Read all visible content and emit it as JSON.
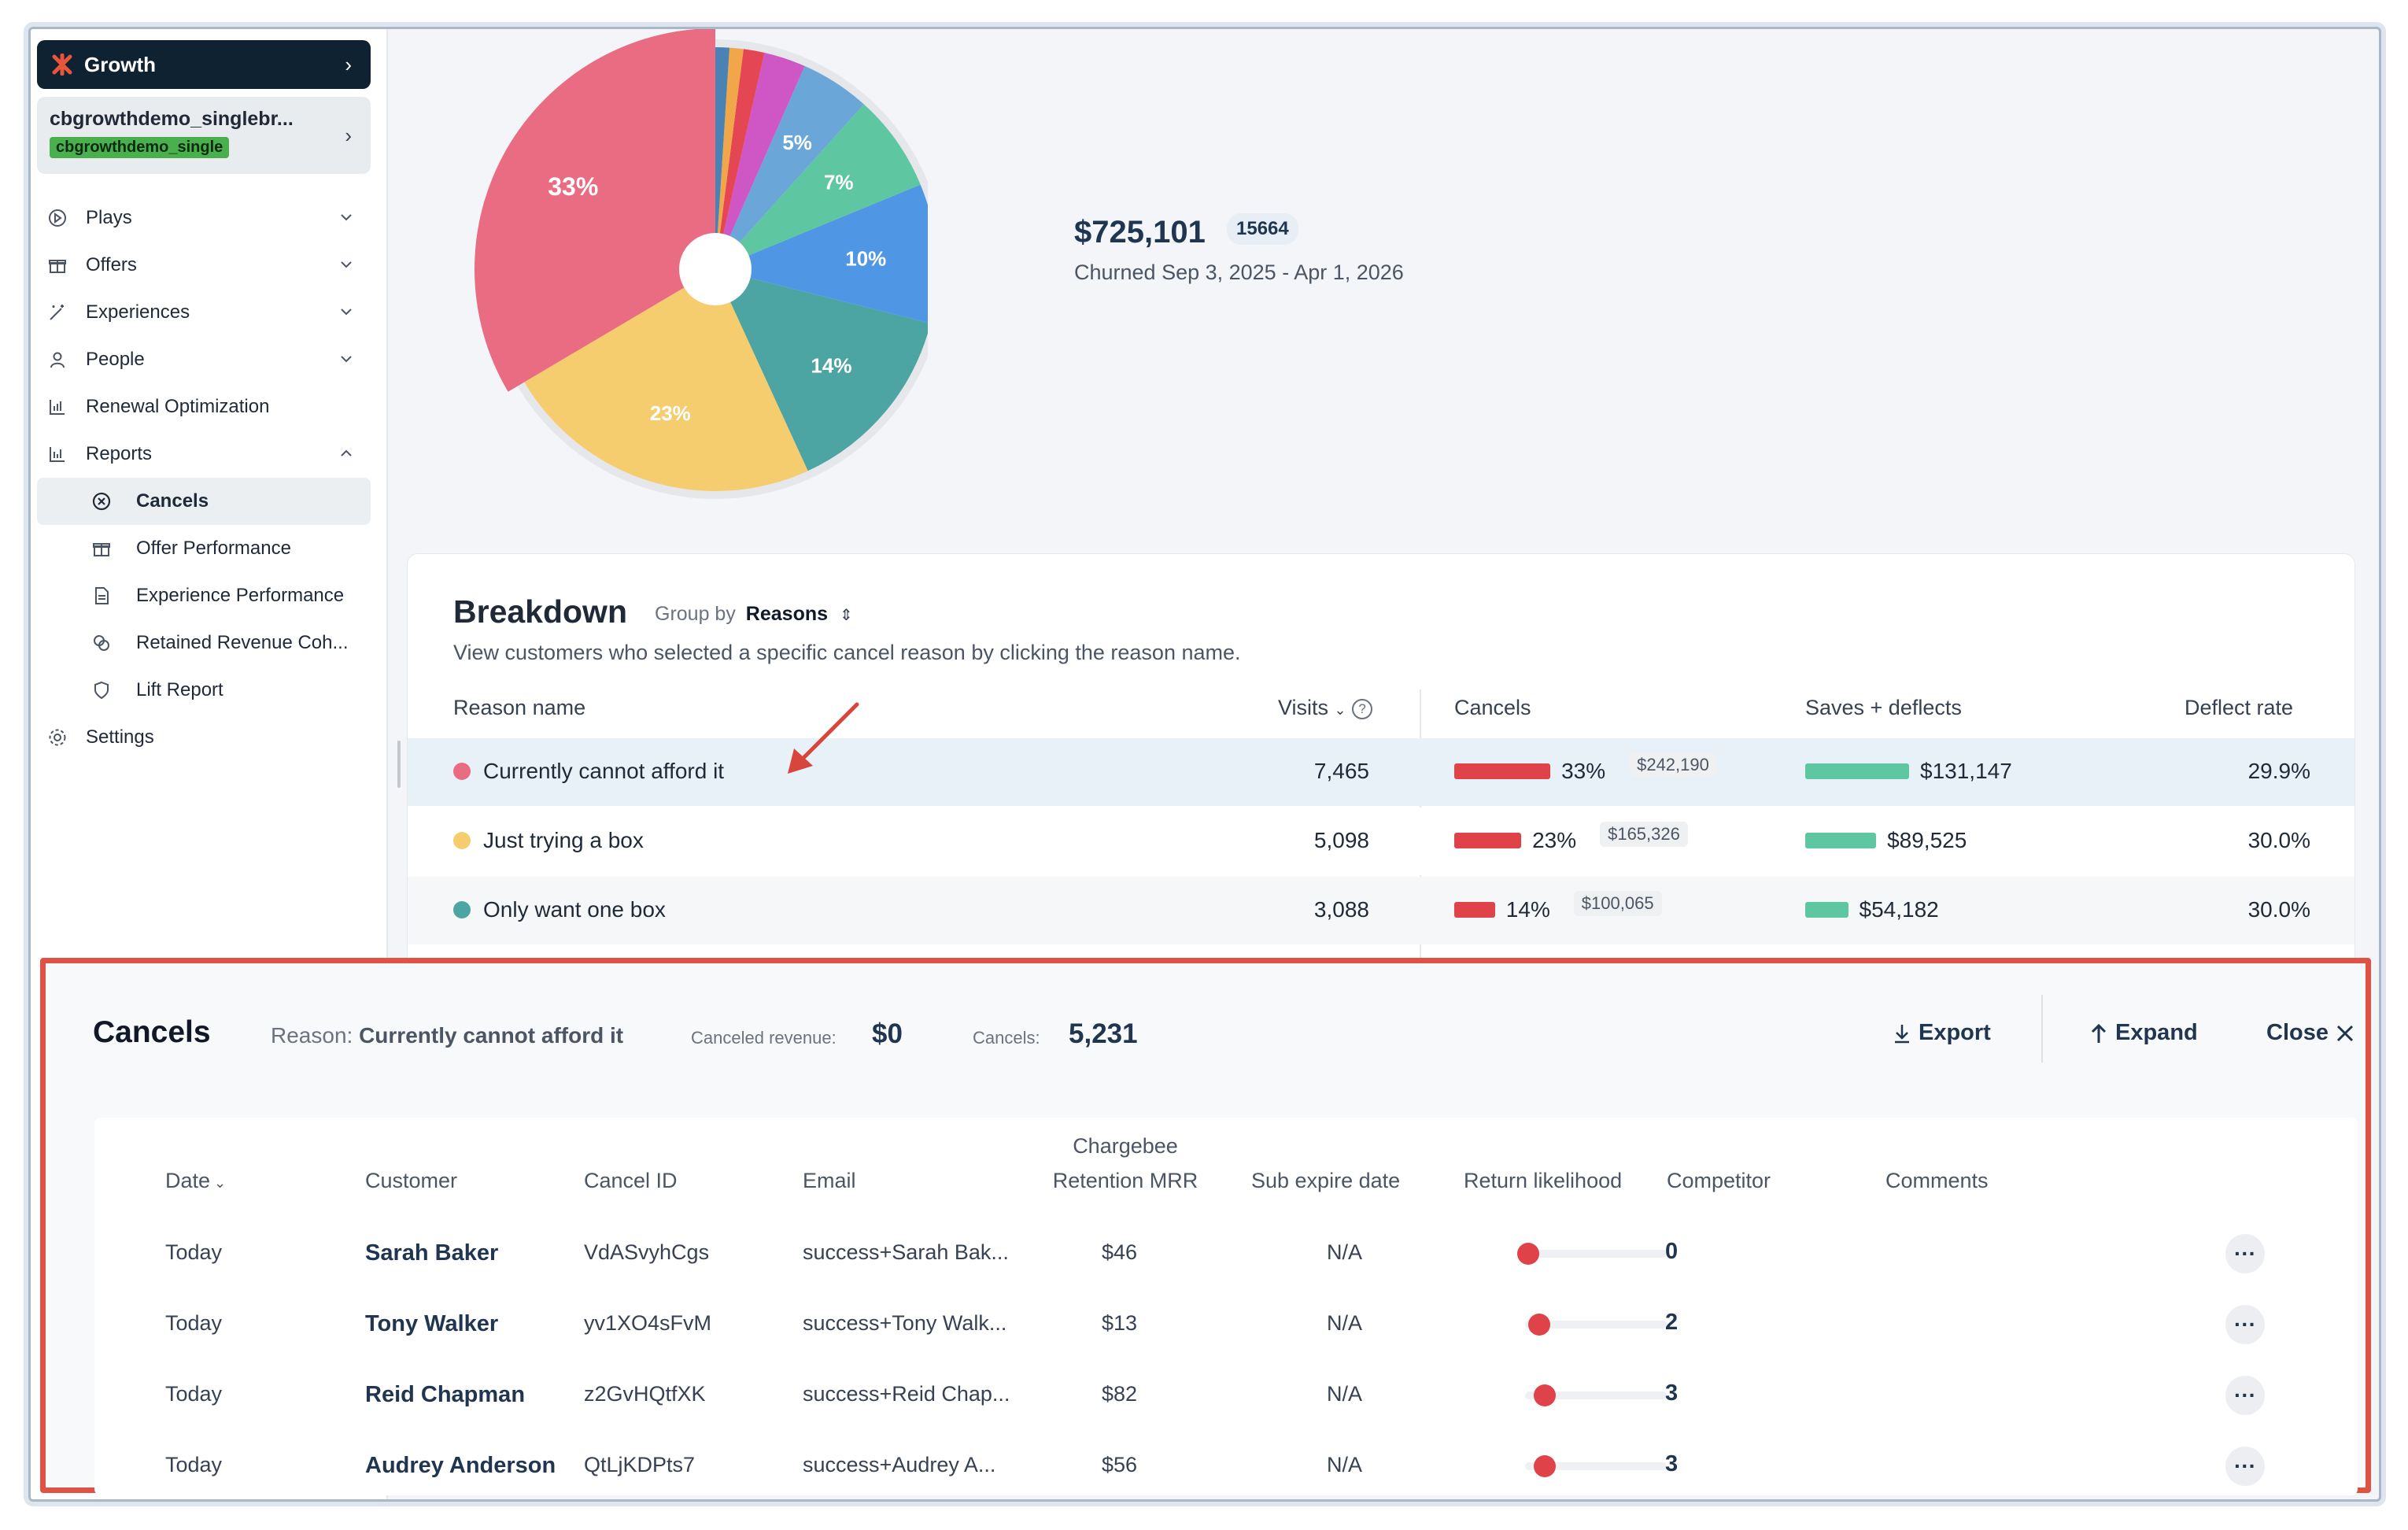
{
  "sidebar": {
    "workspace": "Growth",
    "account": {
      "name": "cbgrowthdemo_singlebr...",
      "badge": "cbgrowthdemo_single"
    },
    "items": [
      {
        "label": "Plays"
      },
      {
        "label": "Offers"
      },
      {
        "label": "Experiences"
      },
      {
        "label": "People"
      },
      {
        "label": "Renewal Optimization"
      },
      {
        "label": "Reports"
      }
    ],
    "reports_sub": [
      {
        "label": "Cancels"
      },
      {
        "label": "Offer Performance"
      },
      {
        "label": "Experience Performance"
      },
      {
        "label": "Retained Revenue Coh..."
      },
      {
        "label": "Lift Report"
      }
    ],
    "settings": "Settings"
  },
  "summary": {
    "total": "$725,101",
    "count": "15664",
    "subtitle": "Churned Sep 3, 2025 - Apr 1, 2026"
  },
  "chart_data": {
    "type": "pie",
    "slices": [
      {
        "label": "Currently cannot afford it",
        "value": 33,
        "text": "33%",
        "color": "#e96c82"
      },
      {
        "label": "Just trying a box",
        "value": 23,
        "text": "23%",
        "color": "#f5cd6e"
      },
      {
        "label": "Only want one box",
        "value": 14,
        "text": "14%",
        "color": "#4ca5a3"
      },
      {
        "label": "",
        "value": 10,
        "text": "10%",
        "color": "#4f97e5"
      },
      {
        "label": "",
        "value": 7,
        "text": "7%",
        "color": "#5ec6a1"
      },
      {
        "label": "",
        "value": 5,
        "text": "5%",
        "color": "#6aa6d8"
      },
      {
        "label": "",
        "value": 3,
        "text": "",
        "color": "#cf56c5"
      },
      {
        "label": "",
        "value": 1.5,
        "text": "",
        "color": "#e54653"
      },
      {
        "label": "",
        "value": 1,
        "text": "",
        "color": "#f2a64a"
      },
      {
        "label": "",
        "value": 1,
        "text": "",
        "color": "#4a82b4"
      }
    ]
  },
  "breakdown": {
    "title": "Breakdown",
    "group_by_label": "Group by",
    "group_by_value": "Reasons",
    "subtitle": "View customers who selected a specific cancel reason by clicking the reason name.",
    "headers": {
      "reason": "Reason name",
      "visits": "Visits",
      "cancels": "Cancels",
      "saves": "Saves + deflects",
      "deflect": "Deflect rate"
    },
    "rows": [
      {
        "reason": "Currently cannot afford it",
        "color": "#e96c82",
        "visits": "7,465",
        "cancel_pct": "33%",
        "cancel_pct_value": 33,
        "cancel_amt": "$242,190",
        "saves": "$131,147",
        "saves_value": 131147,
        "deflect": "29.9%"
      },
      {
        "reason": "Just trying a box",
        "color": "#f5cd6e",
        "visits": "5,098",
        "cancel_pct": "23%",
        "cancel_pct_value": 23,
        "cancel_amt": "$165,326",
        "saves": "$89,525",
        "saves_value": 89525,
        "deflect": "30.0%"
      },
      {
        "reason": "Only want one box",
        "color": "#4ca5a3",
        "visits": "3,088",
        "cancel_pct": "14%",
        "cancel_pct_value": 14,
        "cancel_amt": "$100,065",
        "saves": "$54,182",
        "saves_value": 54182,
        "deflect": "30.0%"
      }
    ]
  },
  "cancels_panel": {
    "title": "Cancels",
    "reason_label": "Reason:",
    "reason_value": "Currently cannot afford it",
    "revenue_label": "Canceled revenue:",
    "revenue_value": "$0",
    "cancels_label": "Cancels:",
    "cancels_value": "5,231",
    "export": "Export",
    "expand": "Expand",
    "close": "Close",
    "columns": {
      "date": "Date",
      "customer": "Customer",
      "cancel_id": "Cancel ID",
      "email": "Email",
      "mrr_line1": "Chargebee",
      "mrr_line2": "Retention MRR",
      "expire": "Sub expire date",
      "return": "Return likelihood",
      "competitor": "Competitor",
      "comments": "Comments"
    },
    "rows": [
      {
        "date": "Today",
        "customer": "Sarah Baker",
        "cancel_id": "VdASvyhCgs",
        "email": "success+Sarah Bak...",
        "mrr": "$46",
        "expire": "N/A",
        "likelihood": "0",
        "likelihood_value": 0
      },
      {
        "date": "Today",
        "customer": "Tony Walker",
        "cancel_id": "yv1XO4sFvM",
        "email": "success+Tony Walk...",
        "mrr": "$13",
        "expire": "N/A",
        "likelihood": "2",
        "likelihood_value": 2
      },
      {
        "date": "Today",
        "customer": "Reid Chapman",
        "cancel_id": "z2GvHQtfXK",
        "email": "success+Reid Chap...",
        "mrr": "$82",
        "expire": "N/A",
        "likelihood": "3",
        "likelihood_value": 3
      },
      {
        "date": "Today",
        "customer": "Audrey Anderson",
        "cancel_id": "QtLjKDPts7",
        "email": "success+Audrey A...",
        "mrr": "$56",
        "expire": "N/A",
        "likelihood": "3",
        "likelihood_value": 3
      }
    ]
  },
  "colors": {
    "cancel_bar": "#e0424a",
    "saves_bar": "#5ec6a1",
    "accent": "#1f3550",
    "highlight_row": "#e8f1f8",
    "panel_border": "#e05243"
  }
}
